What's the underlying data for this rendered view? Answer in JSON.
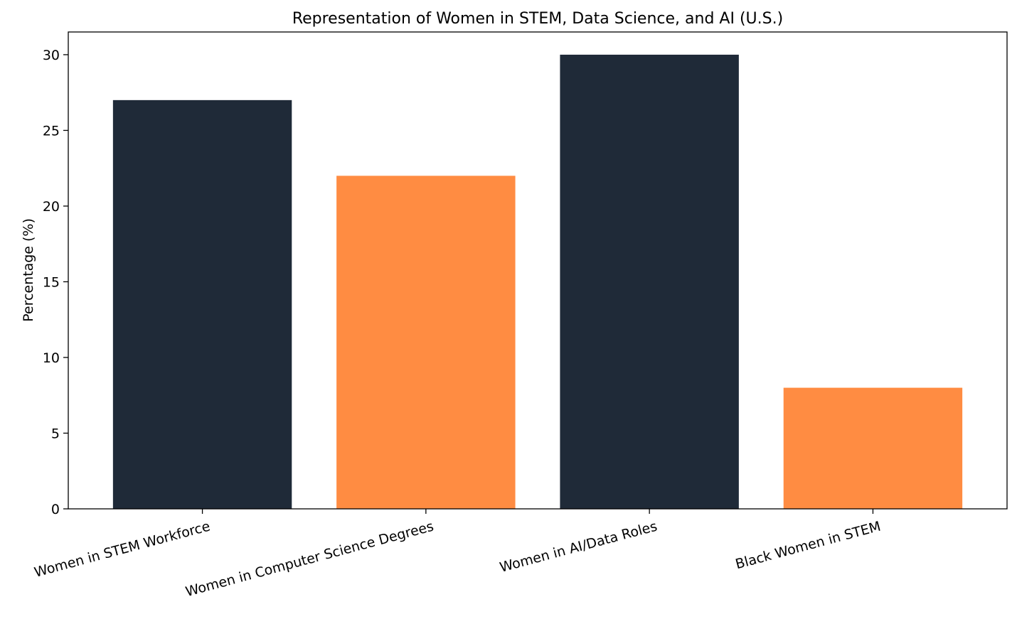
{
  "chart_data": {
    "type": "bar",
    "title": "Representation of Women in STEM, Data Science, and AI (U.S.)",
    "xlabel": "",
    "ylabel": "Percentage (%)",
    "categories": [
      "Women in STEM Workforce",
      "Women in Computer Science Degrees",
      "Women in AI/Data Roles",
      "Black Women in STEM"
    ],
    "values": [
      27,
      22,
      30,
      8
    ],
    "bar_colors": [
      "#1f2a38",
      "#ff8c42",
      "#1f2a38",
      "#ff8c42"
    ],
    "ylim": [
      0,
      31.5
    ],
    "yticks": [
      0,
      5,
      10,
      15,
      20,
      25,
      30
    ],
    "grid": false,
    "legend": "none"
  }
}
